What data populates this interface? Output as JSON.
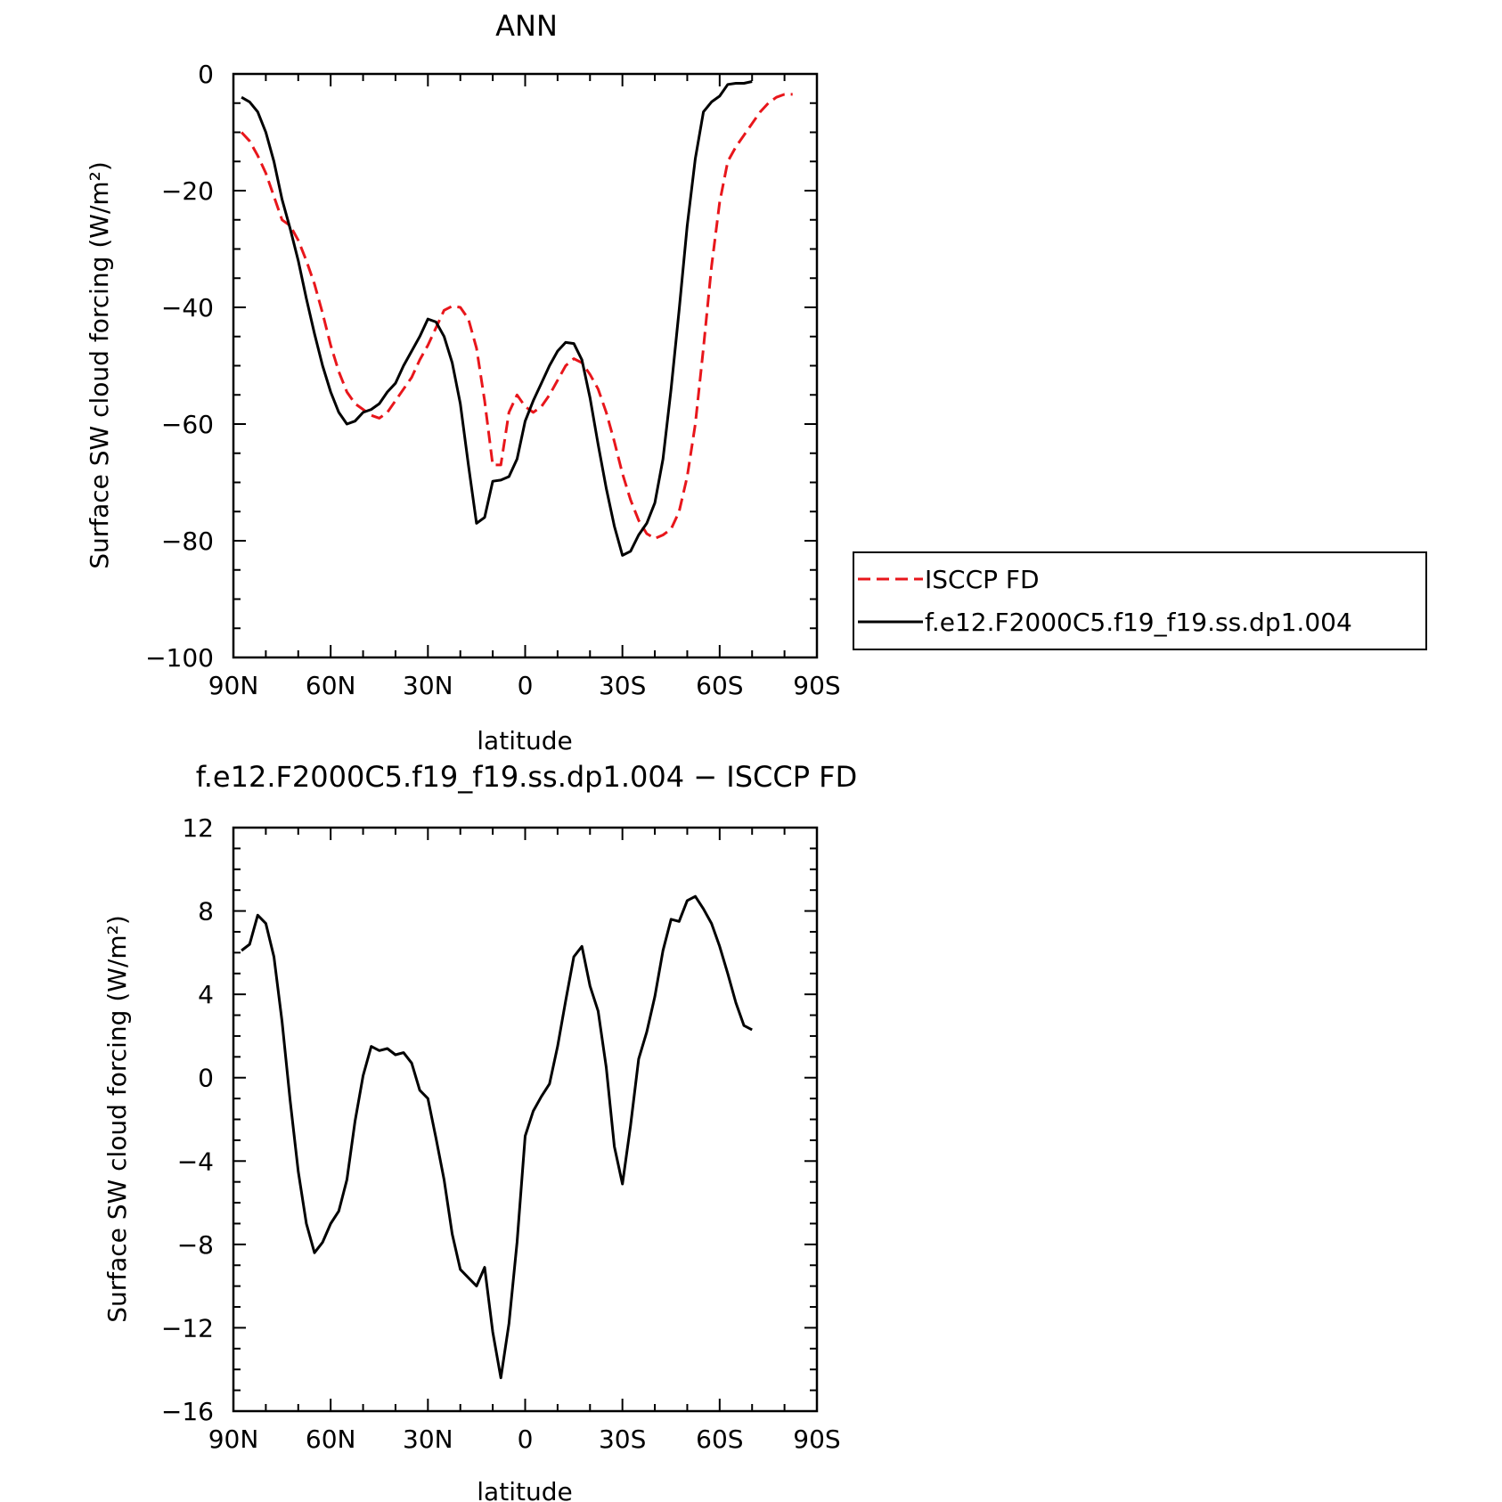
{
  "chart_data": [
    {
      "type": "line",
      "title": "ANN",
      "xlabel": "latitude",
      "ylabel": "Surface SW cloud forcing (W/m²)",
      "xlim": [
        90,
        -90
      ],
      "ylim": [
        -100,
        0
      ],
      "xticks": [
        90,
        60,
        30,
        0,
        -30,
        -60,
        -90
      ],
      "xtick_labels": [
        "90N",
        "60N",
        "30N",
        "0",
        "30S",
        "60S",
        "90S"
      ],
      "yticks": [
        0,
        -20,
        -40,
        -60,
        -80,
        -100
      ],
      "ytick_labels": [
        "0",
        "−20",
        "−40",
        "−60",
        "−80",
        "−100"
      ],
      "grid": false,
      "legend_position": "outside-right",
      "series": [
        {
          "name": "ISCCP FD",
          "color": "#e8161b",
          "dash": "dashed",
          "points": [
            [
              87.5,
              -10
            ],
            [
              85,
              -11.5
            ],
            [
              82.5,
              -14
            ],
            [
              80,
              -17
            ],
            [
              77.5,
              -21
            ],
            [
              75,
              -25
            ],
            [
              72.5,
              -26
            ],
            [
              70,
              -28.5
            ],
            [
              67.5,
              -32
            ],
            [
              65,
              -36
            ],
            [
              62.5,
              -41
            ],
            [
              60,
              -46.5
            ],
            [
              57.5,
              -51
            ],
            [
              55,
              -54.5
            ],
            [
              52.5,
              -56.5
            ],
            [
              50,
              -57.5
            ],
            [
              47.5,
              -58.5
            ],
            [
              45,
              -59
            ],
            [
              42.5,
              -58
            ],
            [
              40,
              -56
            ],
            [
              37.5,
              -54
            ],
            [
              35,
              -52
            ],
            [
              32.5,
              -49
            ],
            [
              30,
              -46.5
            ],
            [
              27.5,
              -43.5
            ],
            [
              25,
              -40.5
            ],
            [
              22.5,
              -39.8
            ],
            [
              20,
              -40
            ],
            [
              17.5,
              -42
            ],
            [
              15,
              -47
            ],
            [
              12.5,
              -56
            ],
            [
              10,
              -67
            ],
            [
              7.5,
              -67
            ],
            [
              5,
              -58
            ],
            [
              2.5,
              -55
            ],
            [
              0,
              -57
            ],
            [
              -2.5,
              -58
            ],
            [
              -5,
              -57
            ],
            [
              -7.5,
              -55
            ],
            [
              -10,
              -52.5
            ],
            [
              -12.5,
              -50
            ],
            [
              -15,
              -48.8
            ],
            [
              -17.5,
              -49.5
            ],
            [
              -20,
              -51.5
            ],
            [
              -22.5,
              -54
            ],
            [
              -25,
              -58
            ],
            [
              -27.5,
              -63
            ],
            [
              -30,
              -68.5
            ],
            [
              -32.5,
              -73
            ],
            [
              -35,
              -76.5
            ],
            [
              -37.5,
              -78.8
            ],
            [
              -40,
              -79.6
            ],
            [
              -42.5,
              -79
            ],
            [
              -45,
              -78
            ],
            [
              -47.5,
              -75
            ],
            [
              -50,
              -69
            ],
            [
              -52.5,
              -60
            ],
            [
              -55,
              -47
            ],
            [
              -57.5,
              -33
            ],
            [
              -60,
              -22
            ],
            [
              -62.5,
              -15
            ],
            [
              -65,
              -12.5
            ],
            [
              -67.5,
              -10.5
            ],
            [
              -70,
              -8.5
            ],
            [
              -72.5,
              -6.5
            ],
            [
              -75,
              -5
            ],
            [
              -77.5,
              -4
            ],
            [
              -80,
              -3.5
            ],
            [
              -82.5,
              -3.5
            ]
          ]
        },
        {
          "name": "f.e12.F2000C5.f19_f19.ss.dp1.004",
          "color": "#000000",
          "dash": "solid",
          "points": [
            [
              87.5,
              -4
            ],
            [
              85,
              -4.8
            ],
            [
              82.5,
              -6.5
            ],
            [
              80,
              -10
            ],
            [
              77.5,
              -15
            ],
            [
              75,
              -21.5
            ],
            [
              72.5,
              -26.5
            ],
            [
              70,
              -32
            ],
            [
              67.5,
              -38.5
            ],
            [
              65,
              -44.5
            ],
            [
              62.5,
              -50
            ],
            [
              60,
              -54.5
            ],
            [
              57.5,
              -58
            ],
            [
              55,
              -60
            ],
            [
              52.5,
              -59.5
            ],
            [
              50,
              -58
            ],
            [
              47.5,
              -57.5
            ],
            [
              45,
              -56.5
            ],
            [
              42.5,
              -54.5
            ],
            [
              40,
              -53
            ],
            [
              37.5,
              -50
            ],
            [
              35,
              -47.5
            ],
            [
              32.5,
              -45
            ],
            [
              30,
              -42
            ],
            [
              27.5,
              -42.5
            ],
            [
              25,
              -45
            ],
            [
              22.5,
              -49.5
            ],
            [
              20,
              -56.5
            ],
            [
              17.5,
              -67
            ],
            [
              15,
              -77
            ],
            [
              12.5,
              -76
            ],
            [
              10,
              -69.8
            ],
            [
              7.5,
              -69.6
            ],
            [
              5,
              -69
            ],
            [
              2.5,
              -66
            ],
            [
              0,
              -59.5
            ],
            [
              -2.5,
              -56
            ],
            [
              -5,
              -53
            ],
            [
              -7.5,
              -50
            ],
            [
              -10,
              -47.5
            ],
            [
              -12.5,
              -46
            ],
            [
              -15,
              -46.2
            ],
            [
              -17.5,
              -49
            ],
            [
              -20,
              -55.5
            ],
            [
              -22.5,
              -63.5
            ],
            [
              -25,
              -71
            ],
            [
              -27.5,
              -77.5
            ],
            [
              -30,
              -82.5
            ],
            [
              -32.5,
              -81.8
            ],
            [
              -35,
              -79
            ],
            [
              -37.5,
              -77
            ],
            [
              -40,
              -73.5
            ],
            [
              -42.5,
              -66
            ],
            [
              -45,
              -54
            ],
            [
              -47.5,
              -40.5
            ],
            [
              -50,
              -26
            ],
            [
              -52.5,
              -14.5
            ],
            [
              -55,
              -6.5
            ],
            [
              -57.5,
              -4.8
            ],
            [
              -60,
              -3.8
            ],
            [
              -62.5,
              -1.8
            ],
            [
              -65,
              -1.6
            ],
            [
              -67.5,
              -1.6
            ],
            [
              -70,
              -1.3
            ]
          ]
        }
      ]
    },
    {
      "type": "line",
      "title": "f.e12.F2000C5.f19_f19.ss.dp1.004 − ISCCP FD",
      "xlabel": "latitude",
      "ylabel": "Surface SW cloud forcing (W/m²)",
      "xlim": [
        90,
        -90
      ],
      "ylim": [
        -16,
        12
      ],
      "xticks": [
        90,
        60,
        30,
        0,
        -30,
        -60,
        -90
      ],
      "xtick_labels": [
        "90N",
        "60N",
        "30N",
        "0",
        "30S",
        "60S",
        "90S"
      ],
      "yticks": [
        12,
        8,
        4,
        0,
        -4,
        -8,
        -12,
        -16
      ],
      "ytick_labels": [
        "12",
        "8",
        "4",
        "0",
        "−4",
        "−8",
        "−12",
        "−16"
      ],
      "grid": false,
      "series": [
        {
          "color": "#000000",
          "dash": "solid",
          "points": [
            [
              87.5,
              6.1
            ],
            [
              85,
              6.4
            ],
            [
              82.5,
              7.8
            ],
            [
              80,
              7.4
            ],
            [
              77.5,
              5.8
            ],
            [
              75,
              2.7
            ],
            [
              72.5,
              -1.1
            ],
            [
              70,
              -4.5
            ],
            [
              67.5,
              -7
            ],
            [
              65,
              -8.4
            ],
            [
              62.5,
              -7.9
            ],
            [
              60,
              -7
            ],
            [
              57.5,
              -6.4
            ],
            [
              55,
              -4.9
            ],
            [
              52.5,
              -2.1
            ],
            [
              50,
              0.1
            ],
            [
              47.5,
              1.5
            ],
            [
              45,
              1.3
            ],
            [
              42.5,
              1.4
            ],
            [
              40,
              1.1
            ],
            [
              37.5,
              1.2
            ],
            [
              35,
              0.7
            ],
            [
              32.5,
              -0.6
            ],
            [
              30,
              -1
            ],
            [
              27.5,
              -2.9
            ],
            [
              25,
              -4.9
            ],
            [
              22.5,
              -7.5
            ],
            [
              20,
              -9.2
            ],
            [
              17.5,
              -9.6
            ],
            [
              15,
              -10
            ],
            [
              12.5,
              -9.1
            ],
            [
              10,
              -12.2
            ],
            [
              7.5,
              -14.4
            ],
            [
              5,
              -11.8
            ],
            [
              2.5,
              -7.9
            ],
            [
              0,
              -2.8
            ],
            [
              -2.5,
              -1.6
            ],
            [
              -5,
              -0.9
            ],
            [
              -7.5,
              -0.3
            ],
            [
              -10,
              1.5
            ],
            [
              -12.5,
              3.7
            ],
            [
              -15,
              5.8
            ],
            [
              -17.5,
              6.3
            ],
            [
              -20,
              4.4
            ],
            [
              -22.5,
              3.2
            ],
            [
              -25,
              0.5
            ],
            [
              -27.5,
              -3.3
            ],
            [
              -30,
              -5.1
            ],
            [
              -32.5,
              -2.3
            ],
            [
              -35,
              0.9
            ],
            [
              -37.5,
              2.2
            ],
            [
              -40,
              3.9
            ],
            [
              -42.5,
              6.1
            ],
            [
              -45,
              7.6
            ],
            [
              -47.5,
              7.5
            ],
            [
              -50,
              8.5
            ],
            [
              -52.5,
              8.7
            ],
            [
              -55,
              8.1
            ],
            [
              -57.5,
              7.4
            ],
            [
              -60,
              6.3
            ],
            [
              -62.5,
              5
            ],
            [
              -65,
              3.6
            ],
            [
              -67.5,
              2.5
            ],
            [
              -70,
              2.3
            ]
          ]
        }
      ]
    }
  ]
}
